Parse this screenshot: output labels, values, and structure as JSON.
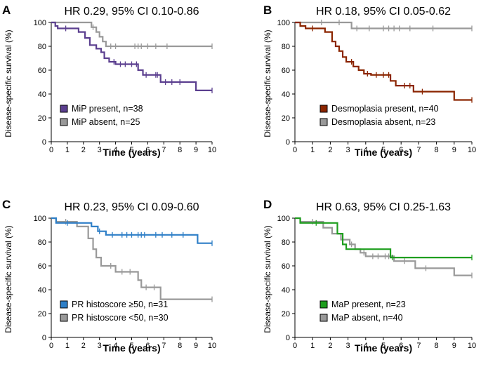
{
  "chart_data": [
    {
      "type": "line",
      "panel": "A",
      "title": "HR 0.29, 95% CI 0.10-0.86",
      "xlabel": "Time (years)",
      "ylabel": "Disease-specific survival (%)",
      "xlim": [
        0,
        10
      ],
      "ylim": [
        0,
        100
      ],
      "xticks": [
        0,
        1,
        2,
        3,
        4,
        5,
        6,
        7,
        8,
        9,
        10
      ],
      "yticks": [
        0,
        20,
        40,
        60,
        80,
        100
      ],
      "legend_position": "bottom-left",
      "series": [
        {
          "name": "MiP present, n=38",
          "color": "#5b3f8f",
          "steps": [
            [
              0,
              100
            ],
            [
              0.25,
              97
            ],
            [
              0.4,
              95
            ],
            [
              1.7,
              92
            ],
            [
              2.1,
              87
            ],
            [
              2.4,
              81
            ],
            [
              2.8,
              78
            ],
            [
              3.1,
              75
            ],
            [
              3.3,
              70
            ],
            [
              3.6,
              67
            ],
            [
              4.0,
              65
            ],
            [
              5.4,
              60
            ],
            [
              5.7,
              56
            ],
            [
              6.8,
              50
            ],
            [
              9.0,
              43
            ],
            [
              10,
              43
            ]
          ],
          "censored": [
            [
              0.9,
              95
            ],
            [
              3.9,
              67
            ],
            [
              4.3,
              65
            ],
            [
              4.6,
              65
            ],
            [
              5.0,
              65
            ],
            [
              5.3,
              65
            ],
            [
              5.9,
              56
            ],
            [
              6.5,
              56
            ],
            [
              6.6,
              56
            ],
            [
              7.1,
              50
            ],
            [
              7.5,
              50
            ],
            [
              8.0,
              50
            ],
            [
              10,
              43
            ]
          ]
        },
        {
          "name": "MiP absent, n=25",
          "color": "#999999",
          "steps": [
            [
              0,
              100
            ],
            [
              2.5,
              96
            ],
            [
              2.8,
              92
            ],
            [
              3.0,
              88
            ],
            [
              3.2,
              84
            ],
            [
              3.4,
              80
            ],
            [
              10,
              80
            ]
          ],
          "censored": [
            [
              2.6,
              96
            ],
            [
              3.7,
              80
            ],
            [
              4.0,
              80
            ],
            [
              5.2,
              80
            ],
            [
              5.4,
              80
            ],
            [
              5.6,
              80
            ],
            [
              6.0,
              80
            ],
            [
              6.5,
              80
            ],
            [
              7.2,
              80
            ],
            [
              10,
              80
            ]
          ]
        }
      ]
    },
    {
      "type": "line",
      "panel": "B",
      "title": "HR 0.18, 95% CI 0.05-0.62",
      "xlabel": "Time (years)",
      "ylabel": "Disease-specific survival (%)",
      "xlim": [
        0,
        10
      ],
      "ylim": [
        0,
        100
      ],
      "xticks": [
        0,
        1,
        2,
        3,
        4,
        5,
        6,
        7,
        8,
        9,
        10
      ],
      "yticks": [
        0,
        20,
        40,
        60,
        80,
        100
      ],
      "legend_position": "bottom-left",
      "series": [
        {
          "name": "Desmoplasia present, n=40",
          "color": "#8b2500",
          "steps": [
            [
              0,
              100
            ],
            [
              0.3,
              97
            ],
            [
              0.6,
              95
            ],
            [
              1.7,
              92
            ],
            [
              2.1,
              84
            ],
            [
              2.3,
              80
            ],
            [
              2.5,
              76
            ],
            [
              2.7,
              71
            ],
            [
              2.9,
              67
            ],
            [
              3.3,
              63
            ],
            [
              3.6,
              60
            ],
            [
              3.9,
              57
            ],
            [
              4.3,
              56
            ],
            [
              5.4,
              51
            ],
            [
              5.7,
              47
            ],
            [
              6.7,
              42
            ],
            [
              9.0,
              35
            ],
            [
              10,
              35
            ]
          ],
          "censored": [
            [
              1.0,
              95
            ],
            [
              3.2,
              67
            ],
            [
              4.1,
              57
            ],
            [
              4.6,
              56
            ],
            [
              5.0,
              56
            ],
            [
              5.3,
              56
            ],
            [
              6.2,
              47
            ],
            [
              6.5,
              47
            ],
            [
              7.2,
              42
            ],
            [
              10,
              35
            ]
          ]
        },
        {
          "name": "Desmoplasia absent, n=23",
          "color": "#999999",
          "steps": [
            [
              0,
              100
            ],
            [
              3.2,
              95
            ],
            [
              10,
              95
            ]
          ],
          "censored": [
            [
              1.5,
              100
            ],
            [
              2.5,
              100
            ],
            [
              3.5,
              95
            ],
            [
              4.2,
              95
            ],
            [
              5.0,
              95
            ],
            [
              5.3,
              95
            ],
            [
              5.6,
              95
            ],
            [
              5.9,
              95
            ],
            [
              6.5,
              95
            ],
            [
              7.8,
              95
            ],
            [
              10,
              95
            ]
          ]
        }
      ]
    },
    {
      "type": "line",
      "panel": "C",
      "title": "HR 0.23, 95% CI 0.09-0.60",
      "xlabel": "Time (years)",
      "ylabel": "Disease-specific survival (%)",
      "xlim": [
        0,
        10
      ],
      "ylim": [
        0,
        100
      ],
      "xticks": [
        0,
        1,
        2,
        3,
        4,
        5,
        6,
        7,
        8,
        9,
        10
      ],
      "yticks": [
        0,
        20,
        40,
        60,
        80,
        100
      ],
      "legend_position": "bottom-left",
      "series": [
        {
          "name": "PR histoscore ≥50, n=31",
          "color": "#2e7fc7",
          "steps": [
            [
              0,
              100
            ],
            [
              0.3,
              96
            ],
            [
              2.5,
              93
            ],
            [
              2.9,
              89
            ],
            [
              3.4,
              86
            ],
            [
              9.1,
              79
            ],
            [
              10,
              79
            ]
          ],
          "censored": [
            [
              1.0,
              96
            ],
            [
              3.0,
              89
            ],
            [
              3.8,
              86
            ],
            [
              4.4,
              86
            ],
            [
              4.7,
              86
            ],
            [
              5.0,
              86
            ],
            [
              5.4,
              86
            ],
            [
              5.6,
              86
            ],
            [
              5.8,
              86
            ],
            [
              6.5,
              86
            ],
            [
              6.9,
              86
            ],
            [
              7.5,
              86
            ],
            [
              8.2,
              86
            ],
            [
              10,
              79
            ]
          ]
        },
        {
          "name": "PR histoscore <50, n=30",
          "color": "#999999",
          "steps": [
            [
              0,
              100
            ],
            [
              0.3,
              97
            ],
            [
              1.6,
              93
            ],
            [
              2.3,
              83
            ],
            [
              2.6,
              74
            ],
            [
              2.8,
              67
            ],
            [
              3.1,
              60
            ],
            [
              4.0,
              55
            ],
            [
              5.4,
              48
            ],
            [
              5.6,
              42
            ],
            [
              6.8,
              32
            ],
            [
              10,
              32
            ]
          ],
          "censored": [
            [
              0.9,
              97
            ],
            [
              3.7,
              60
            ],
            [
              4.4,
              55
            ],
            [
              4.9,
              55
            ],
            [
              5.9,
              42
            ],
            [
              6.4,
              42
            ],
            [
              10,
              32
            ]
          ]
        }
      ]
    },
    {
      "type": "line",
      "panel": "D",
      "title": "HR 0.63, 95% CI 0.25-1.63",
      "xlabel": "Time (years)",
      "ylabel": "Disease-specific survival (%)",
      "xlim": [
        0,
        10
      ],
      "ylim": [
        0,
        100
      ],
      "xticks": [
        0,
        1,
        2,
        3,
        4,
        5,
        6,
        7,
        8,
        9,
        10
      ],
      "yticks": [
        0,
        20,
        40,
        60,
        80,
        100
      ],
      "legend_position": "bottom-left",
      "series": [
        {
          "name": "MaP present, n=23",
          "color": "#1e9e1e",
          "steps": [
            [
              0,
              100
            ],
            [
              0.3,
              96
            ],
            [
              2.4,
              87
            ],
            [
              2.7,
              78
            ],
            [
              2.9,
              74
            ],
            [
              5.4,
              67
            ],
            [
              10,
              67
            ]
          ],
          "censored": [
            [
              1.2,
              96
            ],
            [
              5.5,
              67
            ],
            [
              10,
              67
            ]
          ]
        },
        {
          "name": "MaP absent, n=40",
          "color": "#999999",
          "steps": [
            [
              0,
              100
            ],
            [
              0.3,
              97
            ],
            [
              1.6,
              92
            ],
            [
              2.1,
              87
            ],
            [
              2.6,
              82
            ],
            [
              3.1,
              78
            ],
            [
              3.4,
              74
            ],
            [
              3.7,
              71
            ],
            [
              4.0,
              68
            ],
            [
              5.6,
              64
            ],
            [
              6.8,
              58
            ],
            [
              9.0,
              52
            ],
            [
              10,
              52
            ]
          ],
          "censored": [
            [
              1.0,
              97
            ],
            [
              3.2,
              78
            ],
            [
              3.9,
              71
            ],
            [
              4.4,
              68
            ],
            [
              4.7,
              68
            ],
            [
              5.1,
              68
            ],
            [
              5.3,
              68
            ],
            [
              6.2,
              64
            ],
            [
              7.4,
              58
            ],
            [
              10,
              52
            ]
          ]
        }
      ]
    }
  ]
}
